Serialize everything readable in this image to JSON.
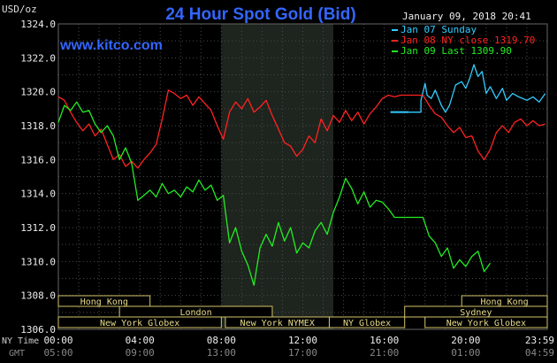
{
  "chart_data": {
    "type": "line",
    "title": "24 Hour Spot Gold (Bid)",
    "website": "www.kitco.com",
    "ylabel": "USD/oz",
    "timestamp": "January 09, 2018 20:41",
    "ylim": [
      1306,
      1324
    ],
    "yticks": [
      "1324.0",
      "1322.0",
      "1320.0",
      "1318.0",
      "1316.0",
      "1314.0",
      "1312.0",
      "1310.0",
      "1308.0",
      "1306.0"
    ],
    "x_ny_label": "NY Time",
    "x_gmt_label": "GMT",
    "x_ny_ticks": [
      "00:00",
      "04:00",
      "08:00",
      "12:00",
      "16:00",
      "20:00",
      "23:59"
    ],
    "x_gmt_ticks": [
      "05:00",
      "09:00",
      "13:00",
      "17:00",
      "21:00",
      "01:00",
      "04:59"
    ],
    "xlim_hours": [
      0,
      24
    ],
    "highlight_hours": [
      8,
      13.5
    ],
    "legend_position": "top-right",
    "legend": [
      {
        "label": "Jan 07 Sunday",
        "color": "#33ccff"
      },
      {
        "label": "Jan 08 NY close 1319.70",
        "color": "#ff2222"
      },
      {
        "label": "Jan 09 Last 1309.90",
        "color": "#22ee22"
      }
    ],
    "sessions": [
      {
        "label": "Hong Kong",
        "start": 0,
        "end": 4.5,
        "row": 0
      },
      {
        "label": "London",
        "start": 3,
        "end": 10.5,
        "row": 1
      },
      {
        "label": "New York Globex",
        "start": 0,
        "end": 8,
        "row": 2
      },
      {
        "label": "New York NYMEX",
        "start": 8.2,
        "end": 13.3,
        "row": 2
      },
      {
        "label": "NY Globex",
        "start": 13.3,
        "end": 17,
        "row": 2
      },
      {
        "label": "Hong Kong",
        "start": 19.8,
        "end": 24,
        "row": 0
      },
      {
        "label": "Sydney",
        "start": 17,
        "end": 24,
        "row": 1
      },
      {
        "label": "New York Globex",
        "start": 18,
        "end": 24,
        "row": 2
      }
    ],
    "series": [
      {
        "name": "Jan 07 Sunday",
        "color": "#33ccff",
        "x": [
          17.2,
          17.8,
          17.8,
          18.0,
          18.1,
          18.3,
          18.5,
          18.8,
          19.0,
          19.2,
          19.5,
          19.8,
          20.0,
          20.2,
          20.4,
          20.6,
          20.8,
          21.0,
          21.2,
          21.5,
          21.8,
          22.0,
          22.3,
          22.6,
          23.0,
          23.3,
          23.6,
          23.9
        ],
        "y": [
          1318.8,
          1318.8,
          1319.5,
          1320.5,
          1319.8,
          1319.6,
          1320.1,
          1319.2,
          1318.8,
          1319.2,
          1320.4,
          1320.6,
          1320.2,
          1320.8,
          1321.6,
          1320.9,
          1321.2,
          1319.9,
          1320.3,
          1319.6,
          1320.2,
          1319.5,
          1319.9,
          1319.7,
          1319.5,
          1319.7,
          1319.4,
          1319.9
        ]
      },
      {
        "name": "Jan 08 NY close 1319.70",
        "color": "#ff2222",
        "x": [
          0.0,
          0.3,
          0.6,
          0.9,
          1.2,
          1.5,
          1.8,
          2.1,
          2.4,
          2.7,
          3.0,
          3.3,
          3.6,
          3.9,
          4.2,
          4.5,
          4.8,
          5.1,
          5.4,
          5.7,
          6.0,
          6.3,
          6.6,
          6.9,
          7.2,
          7.5,
          7.8,
          8.1,
          8.4,
          8.7,
          9.0,
          9.3,
          9.6,
          9.9,
          10.2,
          10.5,
          10.8,
          11.1,
          11.4,
          11.7,
          12.0,
          12.3,
          12.6,
          12.9,
          13.2,
          13.5,
          13.8,
          14.1,
          14.4,
          14.7,
          15.0,
          15.3,
          15.6,
          15.9,
          16.2,
          16.5,
          16.8,
          17.0,
          17.3,
          17.6,
          17.9,
          18.2,
          18.5,
          18.8,
          19.1,
          19.4,
          19.7,
          20.0,
          20.3,
          20.6,
          20.9,
          21.2,
          21.5,
          21.8,
          22.1,
          22.4,
          22.7,
          23.0,
          23.3,
          23.6,
          23.9
        ],
        "y": [
          1319.7,
          1319.5,
          1318.8,
          1318.2,
          1317.7,
          1318.1,
          1317.4,
          1317.8,
          1316.9,
          1316.0,
          1316.3,
          1315.6,
          1315.9,
          1315.5,
          1316.0,
          1316.4,
          1316.9,
          1318.4,
          1320.1,
          1319.9,
          1319.6,
          1319.8,
          1319.2,
          1319.7,
          1319.3,
          1318.9,
          1318.0,
          1317.2,
          1318.8,
          1319.4,
          1319.0,
          1319.6,
          1318.8,
          1319.1,
          1319.5,
          1318.6,
          1317.8,
          1317.0,
          1316.8,
          1316.2,
          1316.6,
          1317.4,
          1317.0,
          1318.4,
          1317.7,
          1318.6,
          1318.2,
          1318.9,
          1318.3,
          1318.8,
          1318.1,
          1318.7,
          1319.1,
          1319.6,
          1319.8,
          1319.7,
          1319.8,
          1319.8,
          1319.8,
          1319.8,
          1319.8,
          1319.2,
          1318.7,
          1318.5,
          1318.0,
          1317.6,
          1317.9,
          1317.3,
          1317.4,
          1316.5,
          1316.0,
          1316.6,
          1317.6,
          1318.0,
          1317.6,
          1318.2,
          1318.4,
          1318.0,
          1318.3,
          1318.0,
          1318.1
        ]
      },
      {
        "name": "Jan 09 Last 1309.90",
        "color": "#22ee22",
        "x": [
          0.0,
          0.3,
          0.6,
          0.9,
          1.2,
          1.5,
          1.8,
          2.1,
          2.4,
          2.7,
          3.0,
          3.3,
          3.6,
          3.9,
          4.2,
          4.5,
          4.8,
          5.1,
          5.4,
          5.7,
          6.0,
          6.3,
          6.6,
          6.9,
          7.2,
          7.5,
          7.8,
          8.1,
          8.4,
          8.7,
          9.0,
          9.3,
          9.6,
          9.9,
          10.2,
          10.5,
          10.8,
          11.1,
          11.4,
          11.7,
          12.0,
          12.3,
          12.6,
          12.9,
          13.2,
          13.5,
          13.8,
          14.1,
          14.4,
          14.7,
          15.0,
          15.3,
          15.6,
          15.9,
          16.2,
          16.5,
          16.8,
          17.0,
          17.3,
          17.6,
          17.9,
          18.2,
          18.5,
          18.8,
          19.1,
          19.4,
          19.7,
          20.0,
          20.3,
          20.6,
          20.9,
          21.2
        ],
        "y": [
          1318.2,
          1319.2,
          1318.9,
          1319.4,
          1318.8,
          1318.9,
          1318.1,
          1317.6,
          1318.0,
          1317.4,
          1316.0,
          1316.7,
          1315.8,
          1313.6,
          1313.9,
          1314.2,
          1313.8,
          1314.6,
          1314.0,
          1314.2,
          1313.8,
          1314.4,
          1314.1,
          1314.8,
          1314.2,
          1314.5,
          1313.6,
          1313.9,
          1311.1,
          1312.0,
          1310.6,
          1309.8,
          1308.6,
          1310.8,
          1311.6,
          1310.9,
          1312.3,
          1311.2,
          1312.0,
          1310.5,
          1311.1,
          1310.8,
          1311.8,
          1312.3,
          1311.6,
          1312.9,
          1313.8,
          1314.9,
          1314.3,
          1313.4,
          1314.1,
          1313.2,
          1313.6,
          1313.5,
          1313.1,
          1312.6,
          1312.6,
          1312.6,
          1312.6,
          1312.6,
          1312.6,
          1311.5,
          1311.1,
          1310.3,
          1310.8,
          1309.6,
          1310.1,
          1309.7,
          1310.3,
          1310.6,
          1309.4,
          1309.9
        ]
      }
    ],
    "jan07_marker": {
      "x_start": 16.3,
      "x_end": 17.2,
      "y": 1318.8
    }
  }
}
